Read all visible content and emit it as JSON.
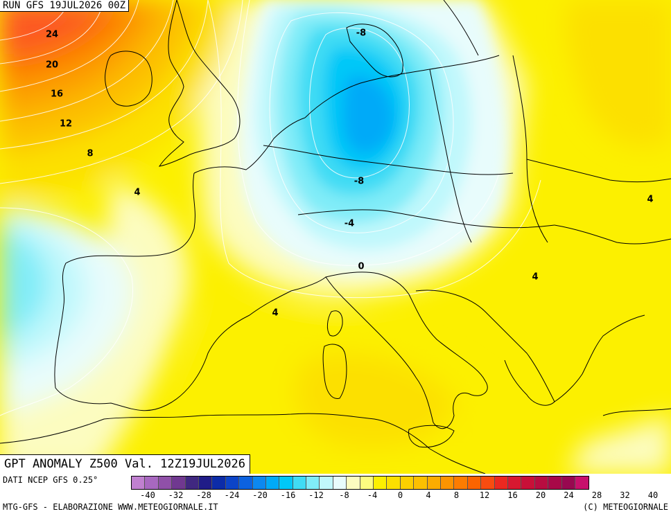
{
  "header": {
    "run_label": "RUN GFS 19JUL2026 00Z"
  },
  "map": {
    "title": "GPT ANOMALY Z500 Val. 12Z19JUL2026",
    "contour_labels": [
      "24",
      "20",
      "16",
      "12",
      "8",
      "4",
      "-8",
      "-8",
      "-4",
      "0",
      "4",
      "4",
      "4"
    ]
  },
  "footer": {
    "data_source": "DATI NCEP GFS 0.25°",
    "credit_left": "MTG-GFS - ELABORAZIONE WWW.METEOGIORNALE.IT",
    "credit_right": "(C) METEOGIORNALE"
  },
  "legend": {
    "tick_labels": [
      "-40",
      "-32",
      "-28",
      "-24",
      "-20",
      "-16",
      "-12",
      "-8",
      "-4",
      "0",
      "4",
      "8",
      "12",
      "16",
      "20",
      "24",
      "28",
      "32",
      "40"
    ],
    "colors": [
      "#c080d0",
      "#a868c0",
      "#9050a8",
      "#703890",
      "#402880",
      "#201c88",
      "#0c2ca8",
      "#0c44c8",
      "#0c62e0",
      "#0c88f0",
      "#00aaf8",
      "#00c8f8",
      "#40dcf4",
      "#80ecf8",
      "#c0f8fc",
      "#e8fcfc",
      "#fcfcc0",
      "#fcfc80",
      "#fcf000",
      "#fce000",
      "#fcd000",
      "#fcc000",
      "#fcac00",
      "#fc9400",
      "#fc7c00",
      "#fc6400",
      "#f84c10",
      "#ec2820",
      "#d81830",
      "#c81038",
      "#b80c40",
      "#a80848",
      "#980850",
      "#c8106c"
    ]
  }
}
